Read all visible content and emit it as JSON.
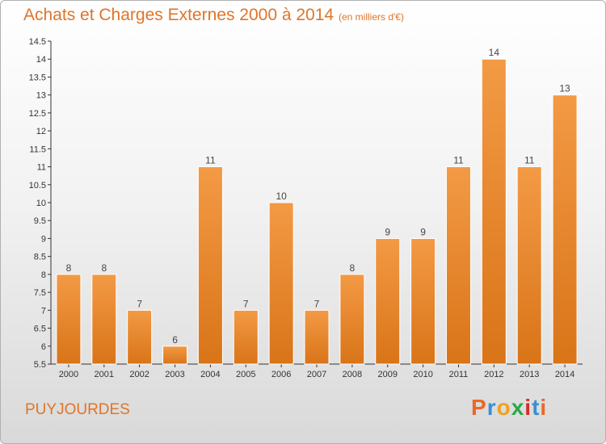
{
  "header": {
    "title": "Achats et Charges Externes 2000 à 2014",
    "unit": "(en milliers d'€)"
  },
  "commune": "PUYJOURDES",
  "logo": {
    "text": "Proxiti",
    "letter_colors": [
      "#e8692a",
      "#3b8fd0",
      "#f0a020",
      "#2aa84a",
      "#d0302a",
      "#3b8fd0",
      "#e8692a"
    ]
  },
  "chart_data": {
    "type": "bar",
    "title": "Achats et Charges Externes 2000 à 2014",
    "subtitle": "(en milliers d'€)",
    "categories": [
      "2000",
      "2001",
      "2002",
      "2003",
      "2004",
      "2005",
      "2006",
      "2007",
      "2008",
      "2009",
      "2010",
      "2011",
      "2012",
      "2013",
      "2014"
    ],
    "values": [
      8,
      8,
      7,
      6,
      11,
      7,
      10,
      7,
      8,
      9,
      9,
      11,
      14,
      11,
      13
    ],
    "ylim": [
      5.5,
      14.5
    ],
    "yticks": [
      "5.5",
      "6",
      "6.5",
      "7",
      "7.5",
      "8",
      "8.5",
      "9",
      "9.5",
      "10",
      "10.5",
      "11",
      "11.5",
      "12",
      "12.5",
      "13",
      "13.5",
      "14",
      "14.5"
    ],
    "grid": false,
    "bar_color": "#f39a45",
    "bar_color_dark": "#d97418"
  }
}
